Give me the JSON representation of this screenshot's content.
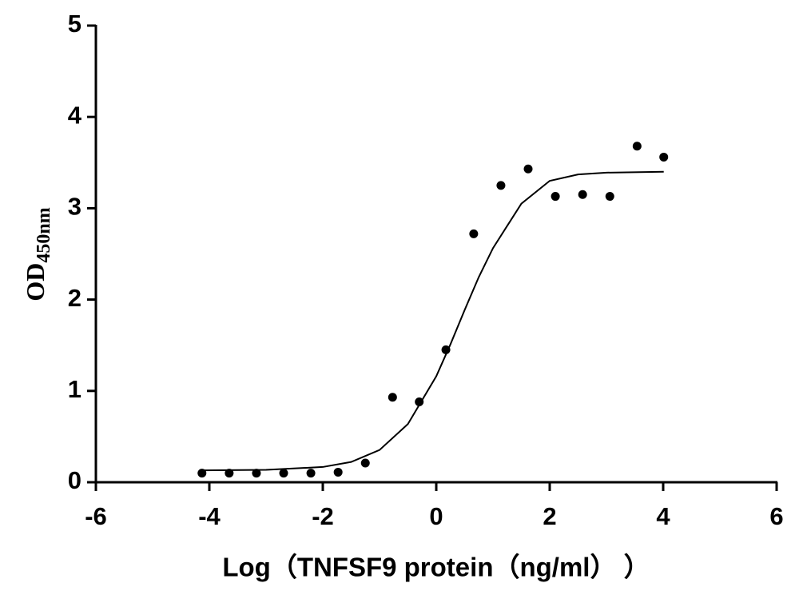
{
  "chart_data": {
    "type": "scatter",
    "x_label": "Log（TNFSF9 protein（ng/ml）  ）",
    "y_label": {
      "main": "OD",
      "sub": "450nm"
    },
    "xlim": [
      -6,
      6
    ],
    "xticks": [
      -6,
      -4,
      -2,
      0,
      2,
      4,
      6
    ],
    "ylim": [
      0,
      5
    ],
    "yticks": [
      0,
      1,
      2,
      3,
      4,
      5
    ],
    "grid": false,
    "series": [
      {
        "type": "scatter",
        "color": "#000000",
        "x": [
          -4.13,
          -3.65,
          -3.17,
          -2.69,
          -2.21,
          -1.73,
          -1.25,
          -0.77,
          -0.3,
          0.17,
          0.66,
          1.14,
          1.62,
          2.1,
          2.58,
          3.06,
          3.54,
          4.01
        ],
        "values": [
          0.1,
          0.1,
          0.1,
          0.1,
          0.1,
          0.11,
          0.21,
          0.93,
          0.88,
          1.45,
          2.72,
          3.25,
          3.43,
          3.13,
          3.15,
          3.13,
          3.68,
          3.56
        ]
      },
      {
        "type": "line",
        "color": "#000000",
        "x": [
          -4.13,
          -3,
          -2,
          -1.5,
          -1,
          -0.5,
          0,
          0.25,
          0.5,
          0.75,
          1,
          1.5,
          2,
          2.5,
          3,
          4.01
        ],
        "values": [
          0.13,
          0.136,
          0.167,
          0.222,
          0.353,
          0.637,
          1.16,
          1.51,
          1.885,
          2.247,
          2.563,
          3.05,
          3.3,
          3.37,
          3.39,
          3.4
        ]
      }
    ]
  }
}
